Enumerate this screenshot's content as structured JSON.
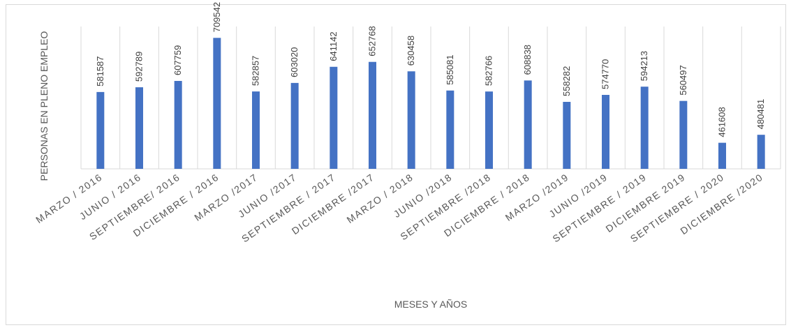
{
  "chart_data": {
    "type": "bar",
    "title": "",
    "xlabel": "MESES Y AÑOS",
    "ylabel": "PERSONAS EN PLENO EMPLEO",
    "categories": [
      "MARZO / 2016",
      "JUNIO / 2016",
      "SEPTIEMBRE/ 2016",
      "DICIEMBRE / 2016",
      "MARZO /2017",
      "JUNIO /2017",
      "SEPTIEMBRE / 2017",
      "DICIEMBRE /2017",
      "MARZO / 2018",
      "JUNIO /2018",
      "SEPTIEMBRE /2018",
      "DICIEMBRE / 2018",
      "MARZO /2019",
      "JUNIO /2019",
      "SEPTIEMBRE / 2019",
      "DICIEMBRE 2019",
      "SEPTIEMBRE / 2020",
      "DICIEMBRE /2020"
    ],
    "values": [
      581587,
      592789,
      607759,
      709542,
      582857,
      603020,
      641142,
      652768,
      630458,
      585081,
      582766,
      608838,
      558282,
      574770,
      594213,
      560497,
      461608,
      480481
    ],
    "data_labels": [
      "581587",
      "592789",
      "607759",
      "709542",
      "582857",
      "603020",
      "641142",
      "652768",
      "630458",
      "585081",
      "582766",
      "608838",
      "558282",
      "574770",
      "594213",
      "560497",
      "461608",
      "480481"
    ],
    "ylim": [
      400000,
      710000
    ],
    "bar_color": "#4472c4",
    "grid_color": "#d9d9d9",
    "grid": true,
    "legend": "none"
  }
}
